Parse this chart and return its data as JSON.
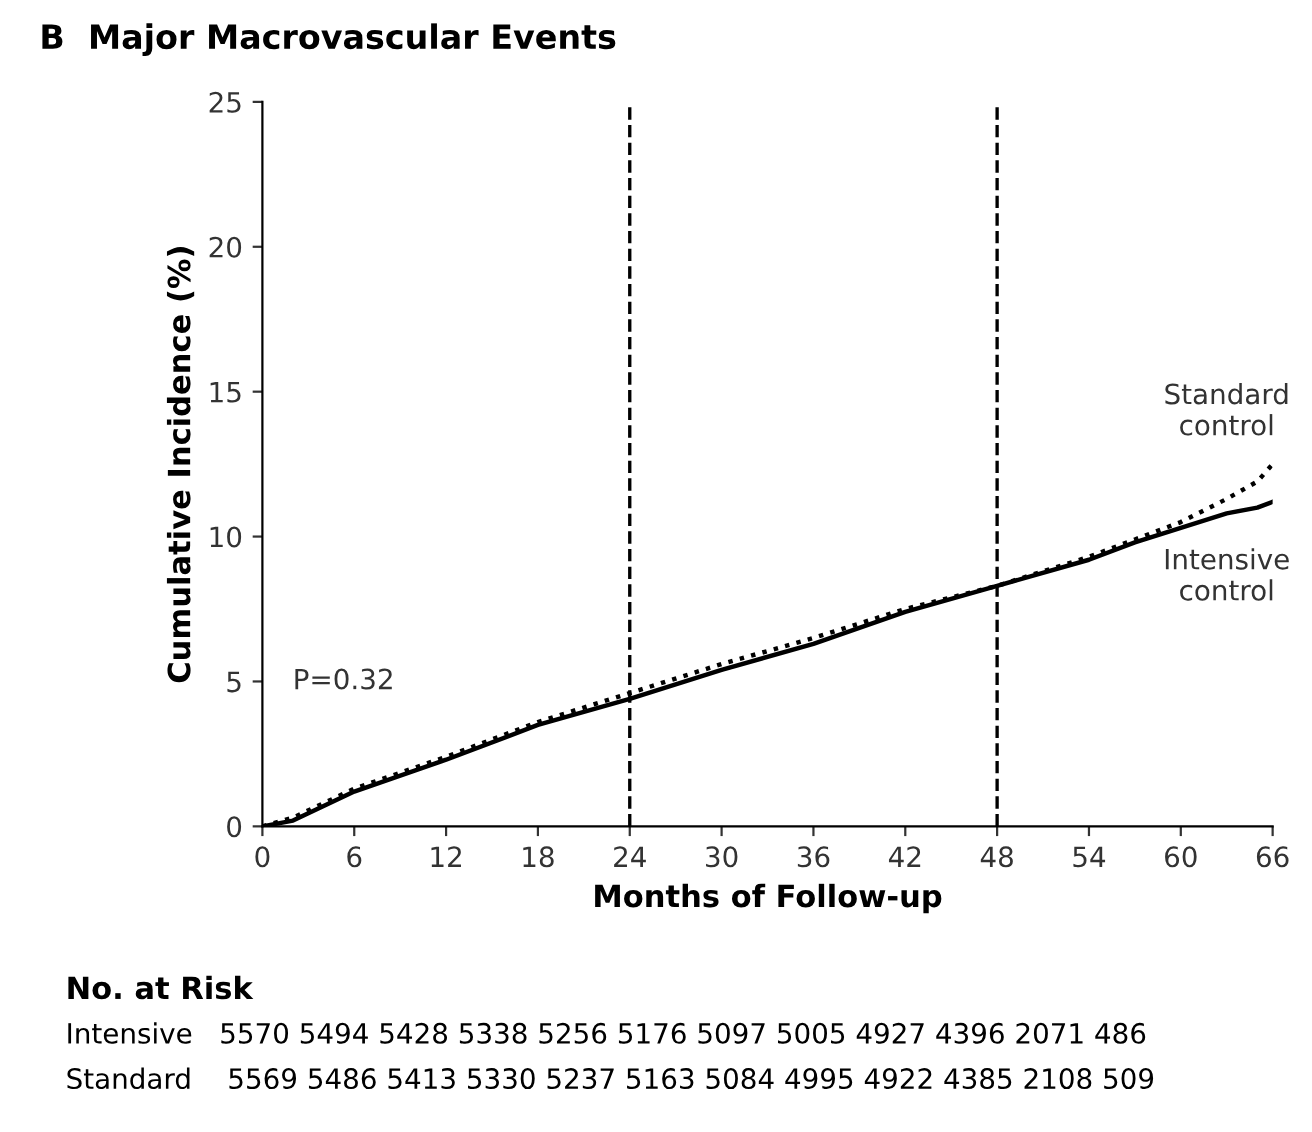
{
  "chart_data": {
    "type": "line",
    "title": "B  Major Macrovascular Events",
    "xlabel": "Months of Follow-up",
    "ylabel": "Cumulative Incidence (%)",
    "series": [
      {
        "name": "Standard control",
        "color": "#000000",
        "line_style": "dotted",
        "x": [
          0,
          2,
          6,
          12,
          18,
          24,
          30,
          36,
          42,
          48,
          54,
          57,
          60,
          63,
          65,
          66
        ],
        "values": [
          0,
          0.3,
          1.3,
          2.4,
          3.6,
          4.6,
          5.6,
          6.5,
          7.5,
          8.3,
          9.3,
          9.9,
          10.5,
          11.3,
          11.9,
          12.5
        ]
      },
      {
        "name": "Intensive control",
        "color": "#000000",
        "line_style": "solid",
        "x": [
          0,
          2,
          6,
          12,
          18,
          24,
          30,
          36,
          42,
          48,
          54,
          57,
          60,
          63,
          65,
          66
        ],
        "values": [
          0,
          0.2,
          1.2,
          2.3,
          3.5,
          4.4,
          5.4,
          6.3,
          7.4,
          8.3,
          9.2,
          9.8,
          10.3,
          10.8,
          11.0,
          11.2
        ]
      }
    ],
    "xlim": [
      0,
      66
    ],
    "xticks": [
      0,
      6,
      12,
      18,
      24,
      30,
      36,
      42,
      48,
      54,
      60,
      66
    ],
    "ylim": [
      0,
      25
    ],
    "yticks": [
      0,
      5,
      10,
      15,
      20,
      25
    ],
    "ref_lines": [
      {
        "axis": "x",
        "value": 24,
        "line_style": "dashed",
        "color": "#000000"
      },
      {
        "axis": "x",
        "value": 48,
        "line_style": "dashed",
        "color": "#000000"
      }
    ],
    "annotations": [
      "P=0.32",
      "No. at Risk",
      "Intensive   5570 5494 5428 5338 5256 5176 5097 5005 4927 4396 2071 486",
      "Standard    5569 5486 5413 5330 5237 5163 5084 4995 4922 4385 2108 509"
    ],
    "grid": false,
    "legend": false
  }
}
